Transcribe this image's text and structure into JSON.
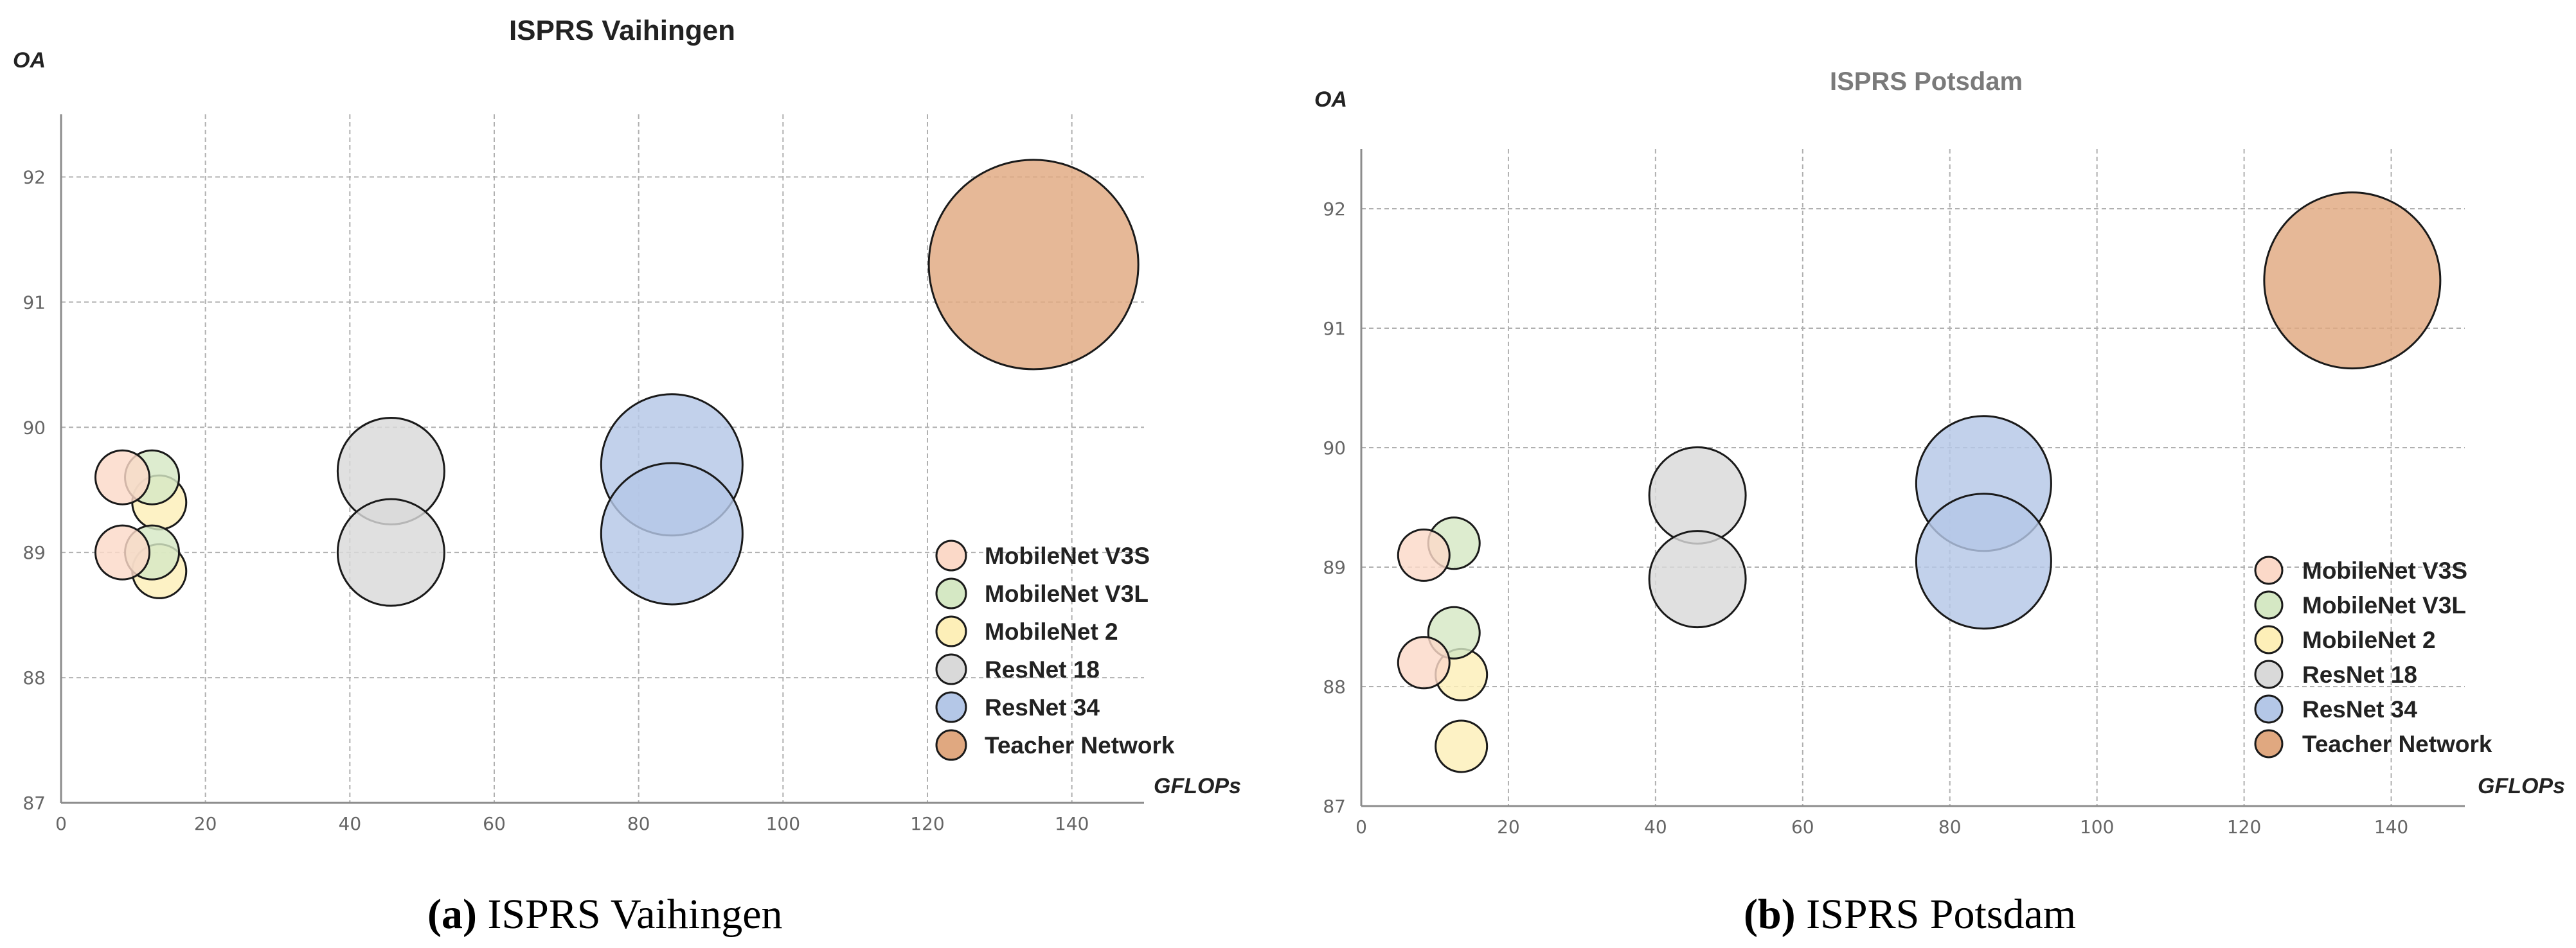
{
  "chart_data": [
    {
      "type": "scatter",
      "title": "ISPRS Vaihingen",
      "title_color": "#222222",
      "xlabel": "GFLOPs",
      "ylabel": "OA",
      "xlim": [
        0,
        150
      ],
      "ylim": [
        87,
        92.5
      ],
      "xticks": [
        "0",
        "20",
        "40",
        "60",
        "80",
        "100",
        "120",
        "140"
      ],
      "yticks": [
        "87",
        "88",
        "89",
        "90",
        "91",
        "92"
      ],
      "grid": true,
      "legend_position": "bottom-right",
      "caption_letter": "(a)",
      "caption_text": "ISPRS Vaihingen",
      "series": [
        {
          "name": "MobileNet V3S",
          "color": "#fbd9c8",
          "points": [
            {
              "x": 8.5,
              "y": 89.6
            },
            {
              "x": 8.5,
              "y": 89.0
            }
          ]
        },
        {
          "name": "MobileNet V3L",
          "color": "#d5e8c4",
          "points": [
            {
              "x": 12.6,
              "y": 89.6
            },
            {
              "x": 12.6,
              "y": 89.0
            }
          ]
        },
        {
          "name": "MobileNet 2",
          "color": "#fdefb8",
          "points": [
            {
              "x": 13.6,
              "y": 89.4
            },
            {
              "x": 13.6,
              "y": 88.85
            }
          ]
        },
        {
          "name": "ResNet 18",
          "color": "#d9d9d9",
          "points": [
            {
              "x": 45.7,
              "y": 89.65
            },
            {
              "x": 45.7,
              "y": 89.0
            }
          ]
        },
        {
          "name": "ResNet 34",
          "color": "#b4c7e7",
          "points": [
            {
              "x": 84.6,
              "y": 89.7
            },
            {
              "x": 84.6,
              "y": 89.15
            }
          ]
        },
        {
          "name": "Teacher Network",
          "color": "#e0a880",
          "points": [
            {
              "x": 134.7,
              "y": 91.3
            }
          ]
        }
      ]
    },
    {
      "type": "scatter",
      "title": "ISPRS Potsdam",
      "title_color": "#7a7a7a",
      "xlabel": "GFLOPs",
      "ylabel": "OA",
      "xlim": [
        0,
        150
      ],
      "ylim": [
        87,
        92.5
      ],
      "xticks": [
        "0",
        "20",
        "40",
        "60",
        "80",
        "100",
        "120",
        "140"
      ],
      "yticks": [
        "87",
        "88",
        "89",
        "90",
        "91",
        "92"
      ],
      "grid": true,
      "legend_position": "bottom-right",
      "caption_letter": "(b)",
      "caption_text": "ISPRS Potsdam",
      "series": [
        {
          "name": "MobileNet V3S",
          "color": "#fbd9c8",
          "points": [
            {
              "x": 8.5,
              "y": 89.1
            },
            {
              "x": 8.5,
              "y": 88.2
            }
          ]
        },
        {
          "name": "MobileNet V3L",
          "color": "#d5e8c4",
          "points": [
            {
              "x": 12.6,
              "y": 89.2
            },
            {
              "x": 12.6,
              "y": 88.45
            }
          ]
        },
        {
          "name": "MobileNet 2",
          "color": "#fdefb8",
          "points": [
            {
              "x": 13.6,
              "y": 88.1
            },
            {
              "x": 13.6,
              "y": 87.5
            }
          ]
        },
        {
          "name": "ResNet 18",
          "color": "#d9d9d9",
          "points": [
            {
              "x": 45.7,
              "y": 89.6
            },
            {
              "x": 45.7,
              "y": 88.9
            }
          ]
        },
        {
          "name": "ResNet 34",
          "color": "#b4c7e7",
          "points": [
            {
              "x": 84.6,
              "y": 89.7
            },
            {
              "x": 84.6,
              "y": 89.05
            }
          ]
        },
        {
          "name": "Teacher Network",
          "color": "#e0a880",
          "points": [
            {
              "x": 134.7,
              "y": 91.4
            }
          ]
        }
      ]
    }
  ]
}
